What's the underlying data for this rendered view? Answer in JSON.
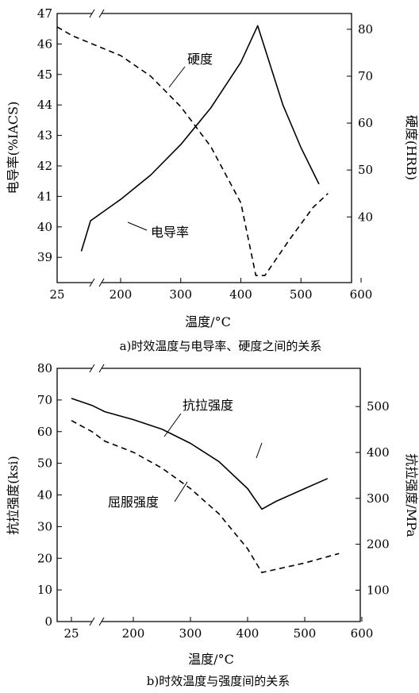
{
  "chart_data": [
    {
      "type": "line",
      "caption": "a)时效温度与电导率、硬度之间的关系",
      "xlabel": "温度/°C",
      "ylabel_left": "电导率(%IACS)",
      "ylabel_right": "硬度(HRB)",
      "x_ticks": [
        "25",
        "200",
        "300",
        "400",
        "500",
        "600"
      ],
      "x_axis_break": true,
      "y_left_ticks": [
        "39",
        "40",
        "41",
        "42",
        "43",
        "44",
        "45",
        "46",
        "47"
      ],
      "y_left_range": [
        38.5,
        47
      ],
      "y_right_ticks": [
        "40",
        "50",
        "60",
        "70",
        "80"
      ],
      "y_right_range": [
        26,
        83.4
      ],
      "grid": false,
      "series": [
        {
          "name": "电导率",
          "axis": "left",
          "style": "solid",
          "x": [
            77,
            150,
            200,
            250,
            300,
            350,
            400,
            428,
            470,
            500,
            530
          ],
          "y": [
            39.2,
            40.2,
            40.9,
            41.7,
            42.7,
            43.9,
            45.4,
            46.6,
            44.0,
            42.6,
            41.4
          ]
        },
        {
          "name": "硬度",
          "axis": "right",
          "style": "dashed",
          "x": [
            25,
            120,
            200,
            250,
            300,
            350,
            400,
            425,
            440,
            480,
            520,
            545
          ],
          "y": [
            80.5,
            78.6,
            74.4,
            70.0,
            63.5,
            55.0,
            43.0,
            27.5,
            27.5,
            35.0,
            42.0,
            45.0
          ]
        }
      ],
      "annotations": [
        "硬度",
        "电导率"
      ]
    },
    {
      "type": "line",
      "caption": "b)时效温度与强度间的关系",
      "xlabel": "温度/°C",
      "ylabel_left": "抗拉强度(ksi)",
      "ylabel_right": "抗拉强度/MPa",
      "x_ticks": [
        "25",
        "200",
        "300",
        "400",
        "500",
        "600"
      ],
      "x_axis_break": true,
      "y_left_ticks": [
        "0",
        "10",
        "20",
        "30",
        "40",
        "50",
        "60",
        "70",
        "80"
      ],
      "y_left_range": [
        0,
        80
      ],
      "y_right_ticks": [
        "100",
        "200",
        "300",
        "400",
        "500"
      ],
      "grid": false,
      "series": [
        {
          "name": "抗拉强度",
          "style": "solid",
          "x": [
            25,
            100,
            150,
            200,
            250,
            300,
            350,
            400,
            425,
            450,
            500,
            540
          ],
          "y": [
            70.5,
            68.3,
            66.3,
            63.8,
            60.8,
            56.3,
            50.5,
            42.0,
            35.5,
            38.0,
            42.0,
            45.2
          ]
        },
        {
          "name": "屈服强度",
          "style": "dashed",
          "x": [
            25,
            100,
            150,
            200,
            250,
            300,
            350,
            400,
            425,
            450,
            500,
            560
          ],
          "y": [
            63.5,
            60.0,
            57.0,
            53.5,
            48.5,
            42.0,
            34.0,
            23.0,
            15.5,
            16.5,
            18.5,
            21.5
          ]
        }
      ],
      "annotations": [
        "抗拉强度",
        "屈服强度"
      ]
    }
  ]
}
